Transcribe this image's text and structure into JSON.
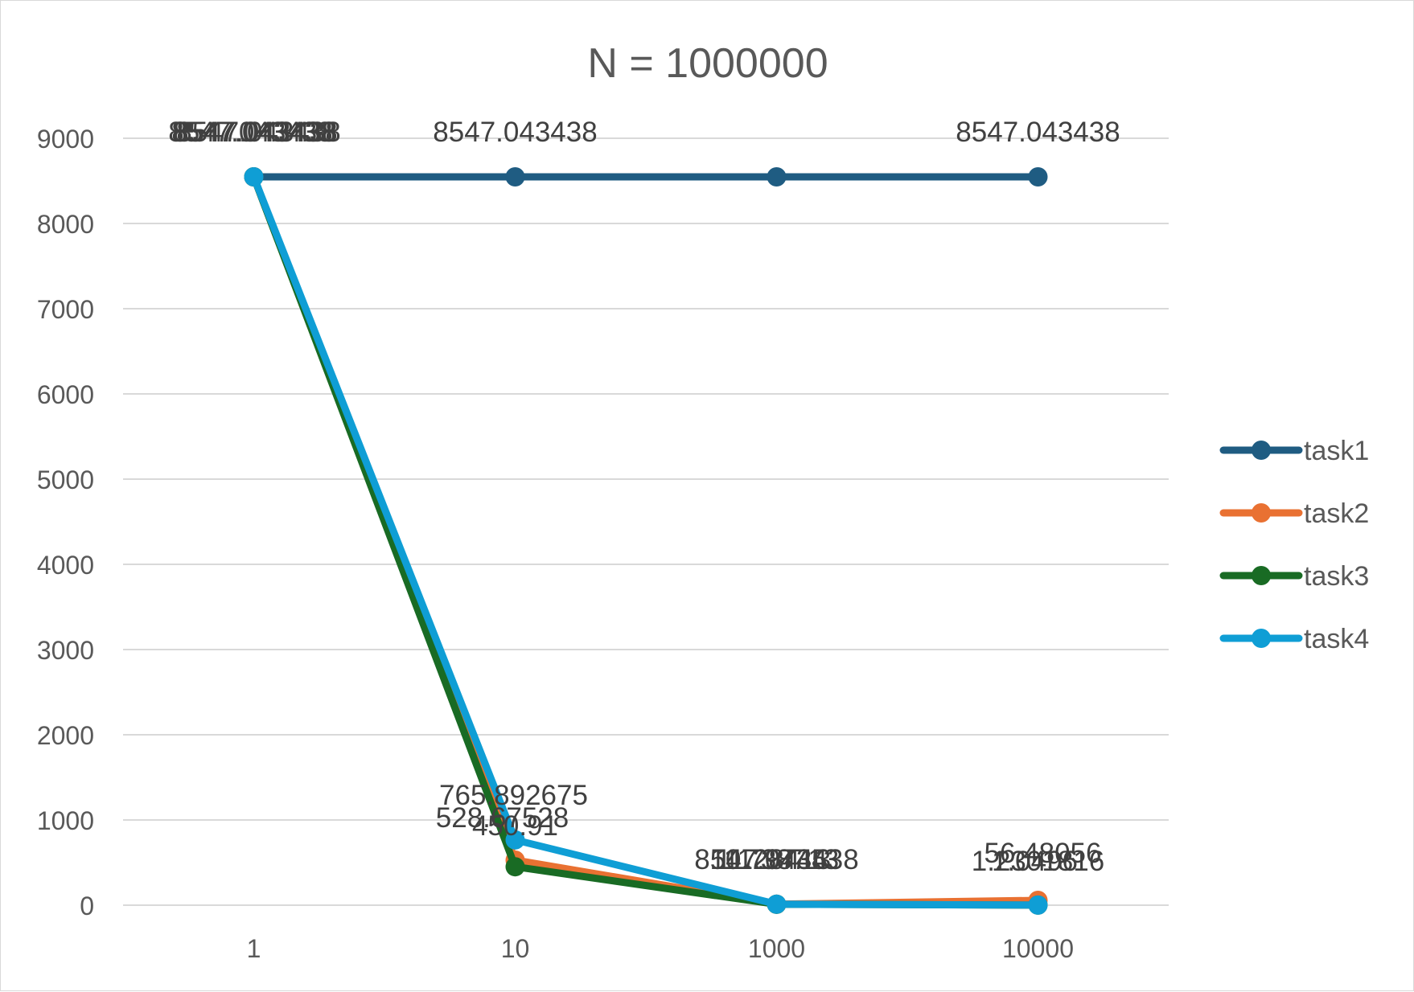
{
  "chart_data": {
    "type": "line",
    "title": "N = 1000000",
    "xlabel": "",
    "ylabel": "",
    "categories": [
      "1",
      "10",
      "1000",
      "10000"
    ],
    "ylim": [
      0,
      9000
    ],
    "yticks": [
      0,
      1000,
      2000,
      3000,
      4000,
      5000,
      6000,
      7000,
      8000,
      9000
    ],
    "ytick_labels": [
      "0",
      "1000",
      "2000",
      "3000",
      "4000",
      "5000",
      "6000",
      "7000",
      "8000",
      "9000"
    ],
    "grid": true,
    "legend_position": "right",
    "markers": true,
    "series": [
      {
        "name": "task1",
        "color": "#1F5C82",
        "values": [
          8547.043438,
          8547.043438,
          8547.043438,
          8547.043438
        ],
        "labels": [
          "8547.043438",
          "8547.043438",
          "8547.043438",
          "8547.043438"
        ]
      },
      {
        "name": "task2",
        "color": "#E97132",
        "values": [
          8547.043438,
          528.67528,
          11.28413,
          56.48056
        ],
        "labels": [
          "8547.043438",
          "528.67528",
          "11.28413",
          "56.48056"
        ]
      },
      {
        "name": "task3",
        "color": "#196B24",
        "values": [
          8547.043438,
          450.91,
          10.79745,
          1.0496
        ],
        "labels": [
          "8547.043438",
          "450.91",
          "10.79745",
          "1.0496"
        ]
      },
      {
        "name": "task4",
        "color": "#0F9ED5",
        "values": [
          8547.043438,
          765.892675,
          11.38713,
          1.2301816
        ],
        "labels": [
          "8547.043438",
          "765.892675",
          "11.38713",
          "1.2301816"
        ]
      }
    ]
  }
}
